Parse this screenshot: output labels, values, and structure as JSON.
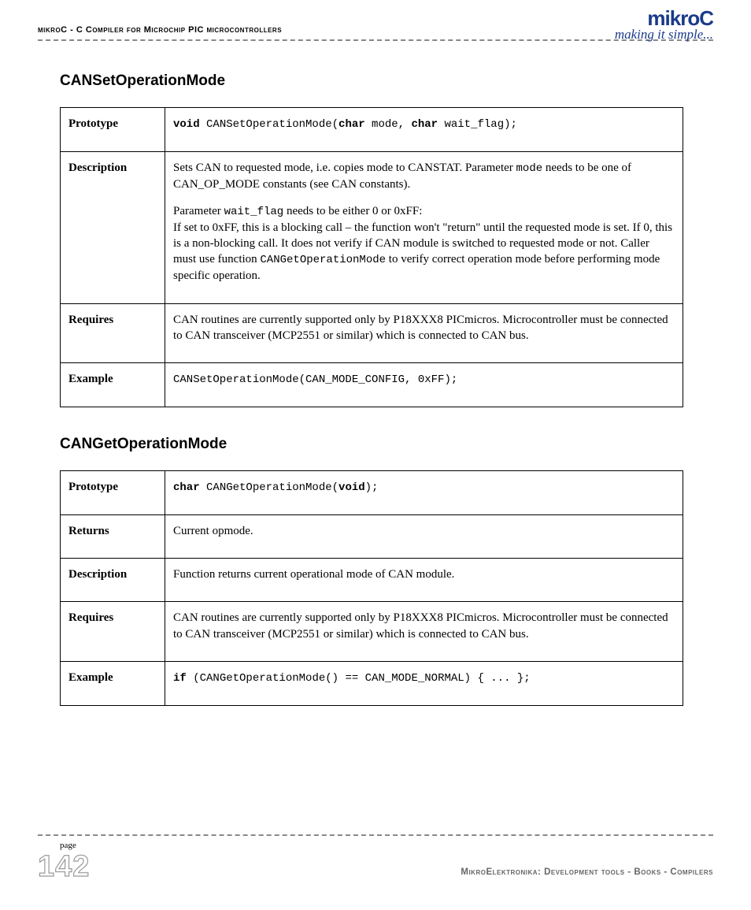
{
  "header": {
    "left": "mikroC - C Compiler for Microchip PIC microcontrollers",
    "logo": "mikroC",
    "tagline": "making it simple..."
  },
  "sections": [
    {
      "title": "CANSetOperationMode",
      "rows": [
        {
          "label": "Prototype",
          "html": "<span class='mono'><b>void</b> CANSetOperationMode(<b>char</b> mode, <b>char</b> wait_flag);</span>"
        },
        {
          "label": "Description",
          "html": "<div class='para'>Sets CAN to requested mode, i.e. copies mode to CANSTAT. Parameter <span class='mono'>mode</span> needs to be one of CAN_OP_MODE constants (see CAN constants).</div><div class='para'>Parameter <span class='mono'>wait_flag</span> needs to be either 0 or 0xFF:<br>If set to 0xFF, this is a blocking call – the function won't \"return\" until the requested mode is set. If 0, this is a non-blocking call. It does not verify if CAN module is switched to requested mode or not. Caller must use function <span class='mono'>CANGetOperationMode</span> to verify correct operation mode before performing mode specific operation.</div>"
        },
        {
          "label": "Requires",
          "html": "CAN routines are currently supported only by P18XXX8 PICmicros. Microcontroller must be connected to CAN transceiver (MCP2551 or similar) which is connected to CAN bus."
        },
        {
          "label": "Example",
          "html": "<span class='mono'>CANSetOperationMode(CAN_MODE_CONFIG, 0xFF);</span>"
        }
      ]
    },
    {
      "title": "CANGetOperationMode",
      "rows": [
        {
          "label": "Prototype",
          "html": "<span class='mono'><b>char</b> CANGetOperationMode(<b>void</b>);</span>"
        },
        {
          "label": "Returns",
          "html": "Current opmode."
        },
        {
          "label": "Description",
          "html": "Function returns current operational mode of CAN module."
        },
        {
          "label": "Requires",
          "html": "CAN routines are currently supported only by P18XXX8 PICmicros. Microcontroller must be connected to CAN transceiver (MCP2551 or similar) which is connected to CAN bus."
        },
        {
          "label": "Example",
          "html": "<span class='mono'><b>if</b> (CANGetOperationMode() == CAN_MODE_NORMAL) { ... };</span>"
        }
      ]
    }
  ],
  "footer": {
    "page_label": "page",
    "page_number": "142",
    "right": "MikroElektronika: Development tools - Books - Compilers"
  }
}
